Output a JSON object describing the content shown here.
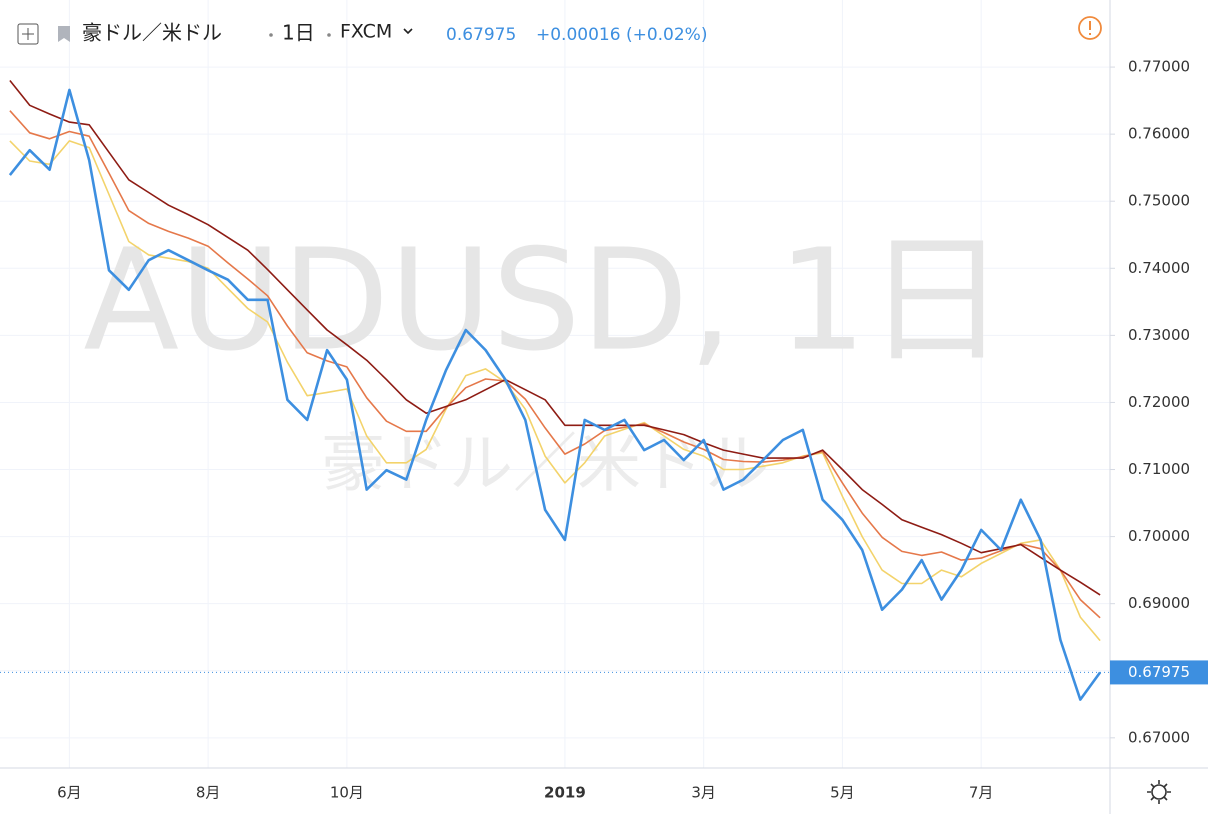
{
  "header": {
    "symbol": "豪ドル／米ドル",
    "interval": "1日",
    "source": "FXCM",
    "change": "+0.00016 (+0.02%)"
  },
  "chart_data": {
    "type": "line",
    "watermark": "AUDUSD, 1日",
    "watermark_subtitle": "豪ドル／米ドル",
    "last_value": 0.67975,
    "categories": [
      null,
      null,
      null,
      "6月",
      null,
      null,
      null,
      null,
      null,
      null,
      "8月",
      null,
      null,
      null,
      null,
      null,
      null,
      "10月",
      null,
      null,
      null,
      null,
      null,
      null,
      null,
      null,
      null,
      null,
      "2019",
      null,
      null,
      null,
      null,
      null,
      null,
      "3月",
      null,
      null,
      null,
      null,
      null,
      null,
      "5月",
      null,
      null,
      null,
      null,
      null,
      null,
      "7月",
      null,
      null,
      null,
      null,
      null,
      null
    ],
    "series": [
      {
        "color": "#f3d36b",
        "values": [
          0.759,
          0.756,
          0.7555,
          0.759,
          0.758,
          0.751,
          0.744,
          0.742,
          0.7415,
          0.741,
          0.74,
          0.737,
          0.734,
          0.732,
          0.726,
          0.721,
          0.7215,
          0.722,
          0.715,
          0.711,
          0.711,
          0.713,
          0.719,
          0.724,
          0.725,
          0.723,
          0.719,
          0.712,
          0.708,
          0.711,
          0.715,
          0.716,
          0.717,
          0.715,
          0.713,
          0.712,
          0.71,
          0.71,
          0.7105,
          0.711,
          0.712,
          0.7125,
          0.706,
          0.7,
          0.695,
          0.693,
          0.693,
          0.695,
          0.694,
          0.696,
          0.6975,
          0.699,
          0.6995,
          0.695,
          0.688,
          0.6845
        ]
      },
      {
        "color": "#e5784a",
        "values": [
          0.7635,
          0.7602,
          0.7593,
          0.7604,
          0.7597,
          0.7542,
          0.7486,
          0.7467,
          0.7455,
          0.7445,
          0.7433,
          0.7408,
          0.7384,
          0.7359,
          0.7314,
          0.7274,
          0.7262,
          0.7253,
          0.7207,
          0.7172,
          0.7157,
          0.7157,
          0.7192,
          0.7222,
          0.7235,
          0.7232,
          0.7205,
          0.7162,
          0.7123,
          0.7138,
          0.7158,
          0.7163,
          0.7168,
          0.7155,
          0.7141,
          0.713,
          0.7115,
          0.7112,
          0.7111,
          0.7114,
          0.7119,
          0.7127,
          0.708,
          0.7035,
          0.6999,
          0.6978,
          0.6972,
          0.6977,
          0.6965,
          0.6968,
          0.6979,
          0.6989,
          0.6982,
          0.695,
          0.6906,
          0.6879
        ]
      },
      {
        "color": "#8e1c14",
        "values": [
          0.768,
          0.7643,
          0.763,
          0.7618,
          0.7614,
          0.7573,
          0.7532,
          0.7513,
          0.7494,
          0.748,
          0.7465,
          0.7446,
          0.7427,
          0.7398,
          0.7368,
          0.7338,
          0.7308,
          0.7286,
          0.7263,
          0.7234,
          0.7204,
          0.7184,
          0.7194,
          0.7204,
          0.7219,
          0.7234,
          0.7219,
          0.7204,
          0.7166,
          0.7166,
          0.7166,
          0.7166,
          0.7166,
          0.7159,
          0.7152,
          0.714,
          0.7129,
          0.7123,
          0.7117,
          0.7117,
          0.7117,
          0.7129,
          0.71,
          0.707,
          0.7048,
          0.7025,
          0.7014,
          0.7003,
          0.699,
          0.6976,
          0.6982,
          0.6988,
          0.6969,
          0.695,
          0.6932,
          0.6913
        ]
      },
      {
        "color": "#3d8fe0",
        "values": [
          0.7539,
          0.7576,
          0.7547,
          0.7666,
          0.7561,
          0.7397,
          0.7368,
          0.7412,
          0.7427,
          0.7412,
          0.7397,
          0.7383,
          0.7353,
          0.7353,
          0.7204,
          0.7174,
          0.7278,
          0.7234,
          0.707,
          0.7099,
          0.7085,
          0.7174,
          0.7248,
          0.7308,
          0.7278,
          0.7234,
          0.7174,
          0.704,
          0.6995,
          0.7174,
          0.7159,
          0.7174,
          0.7129,
          0.7144,
          0.7114,
          0.7144,
          0.707,
          0.7085,
          0.7114,
          0.7144,
          0.7159,
          0.7055,
          0.7025,
          0.698,
          0.6891,
          0.6921,
          0.6965,
          0.6906,
          0.695,
          0.701,
          0.698,
          0.7055,
          0.6995,
          0.6846,
          0.6757,
          0.67975
        ]
      }
    ],
    "ylim": [
      0.6655,
      0.78
    ],
    "yticks": [
      {
        "value": 0.67,
        "label": "0.67000"
      },
      {
        "value": 0.68,
        "label": "0.68000"
      },
      {
        "value": 0.69,
        "label": "0.69000"
      },
      {
        "value": 0.7,
        "label": "0.70000"
      },
      {
        "value": 0.71,
        "label": "0.71000"
      },
      {
        "value": 0.72,
        "label": "0.72000"
      },
      {
        "value": 0.73,
        "label": "0.73000"
      },
      {
        "value": 0.74,
        "label": "0.74000"
      },
      {
        "value": 0.75,
        "label": "0.75000"
      },
      {
        "value": 0.76,
        "label": "0.76000"
      },
      {
        "value": 0.77,
        "label": "0.77000"
      }
    ],
    "grid": true
  }
}
